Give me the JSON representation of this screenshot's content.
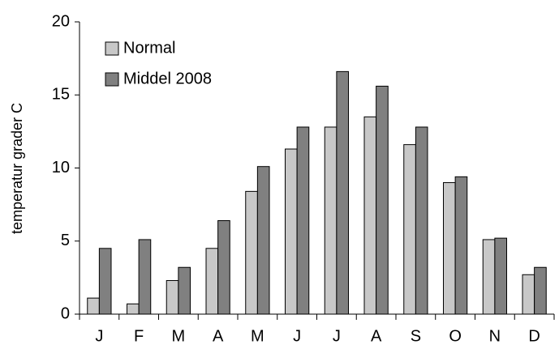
{
  "chart_data": {
    "type": "bar",
    "y_label": "temperatur grader C",
    "categories": [
      "J",
      "F",
      "M",
      "A",
      "M",
      "J",
      "J",
      "A",
      "S",
      "O",
      "N",
      "D"
    ],
    "series": [
      {
        "name": "Normal",
        "color": "#c8c8c8",
        "values": [
          1.1,
          0.7,
          2.3,
          4.5,
          8.4,
          11.3,
          12.8,
          13.5,
          11.6,
          9.0,
          5.1,
          2.7
        ]
      },
      {
        "name": "Middel 2008",
        "color": "#808080",
        "values": [
          4.5,
          5.1,
          3.2,
          6.4,
          10.1,
          12.8,
          16.6,
          15.6,
          12.8,
          9.4,
          5.2,
          3.2
        ]
      }
    ],
    "ylim": [
      0,
      20
    ],
    "yticks": [
      0,
      5,
      10,
      15,
      20
    ],
    "grid": false,
    "legend": "top-left"
  }
}
